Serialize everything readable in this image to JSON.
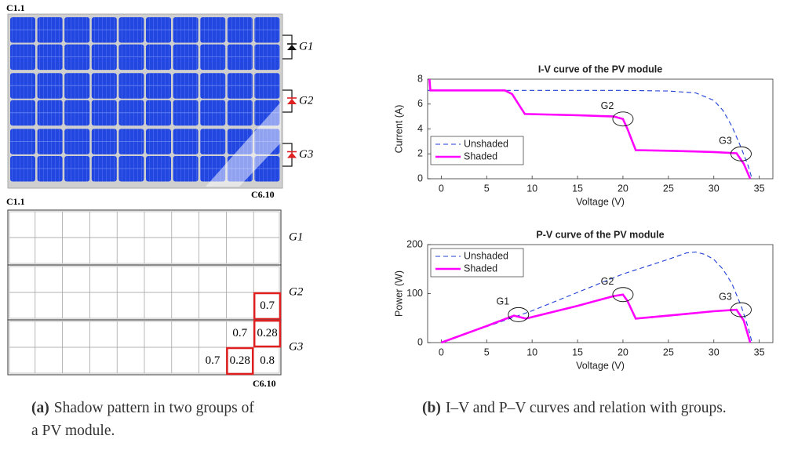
{
  "module": {
    "top_left": "C1.1",
    "bottom_right": "C6.10",
    "groups": [
      "G1",
      "G2",
      "G3"
    ]
  },
  "shadow_map": {
    "top_left": "C1.1",
    "bottom_right": "C6.10",
    "groups": [
      {
        "label": "G1",
        "rows": [
          [
            null,
            null,
            null,
            null,
            null,
            null,
            null,
            null,
            null,
            null
          ],
          [
            null,
            null,
            null,
            null,
            null,
            null,
            null,
            null,
            null,
            null
          ]
        ]
      },
      {
        "label": "G2",
        "rows": [
          [
            null,
            null,
            null,
            null,
            null,
            null,
            null,
            null,
            null,
            null
          ],
          [
            null,
            null,
            null,
            null,
            null,
            null,
            null,
            null,
            null,
            {
              "value": 0.7,
              "highlight": true
            }
          ]
        ]
      },
      {
        "label": "G3",
        "rows": [
          [
            null,
            null,
            null,
            null,
            null,
            null,
            null,
            null,
            0.7,
            {
              "value": 0.28,
              "highlight": true
            }
          ],
          [
            null,
            null,
            null,
            null,
            null,
            null,
            null,
            0.7,
            {
              "value": 0.28,
              "highlight": true
            },
            0.8
          ]
        ]
      }
    ]
  },
  "captions": [
    {
      "label": "(a)",
      "text": "Shadow pattern in two groups of a PV module."
    },
    {
      "label": "(b)",
      "text": "I–V and P–V curves and relation with groups."
    }
  ],
  "chart_data": [
    {
      "type": "line",
      "title": "I-V curve of the PV module",
      "x_label": "Voltage (V)",
      "y_label": "Current (A)",
      "xlim": [
        -1.5,
        36.5
      ],
      "xticks": [
        0,
        5,
        10,
        15,
        20,
        25,
        30,
        35
      ],
      "ylim": [
        0,
        8
      ],
      "yticks": [
        0,
        2,
        4,
        6,
        8
      ],
      "legend": "lower left",
      "series": [
        {
          "name": "Unshaded",
          "color": "#1f3fd6",
          "line_style": "dashed",
          "x": [
            -1.5,
            8,
            20,
            25,
            28,
            30,
            31,
            32,
            33,
            33.8,
            34.2
          ],
          "values": [
            7.1,
            7.1,
            7.1,
            7.05,
            6.9,
            6.3,
            5.5,
            4.2,
            2.5,
            1,
            0
          ]
        },
        {
          "name": "Shaded",
          "color": "#ff00ff",
          "line_style": "solid",
          "x": [
            -1.3,
            -1.2,
            7,
            7.8,
            8.5,
            9.2,
            15,
            19,
            20,
            20.5,
            21.4,
            25,
            30,
            32.5,
            33.3,
            34
          ],
          "values": [
            8,
            7.1,
            7.1,
            6.8,
            6,
            5.2,
            5.1,
            5,
            4.8,
            4,
            2.3,
            2.25,
            2.15,
            2.05,
            1.2,
            0
          ]
        }
      ],
      "annotations": [
        {
          "text": "G2",
          "x": 20,
          "y": 4.8
        },
        {
          "text": "G3",
          "x": 33,
          "y": 2
        }
      ]
    },
    {
      "type": "line",
      "title": "P-V curve of the PV module",
      "x_label": "Voltage (V)",
      "y_label": "Power (W)",
      "xlim": [
        -1.5,
        36.5
      ],
      "xticks": [
        0,
        5,
        10,
        15,
        20,
        25,
        30,
        35
      ],
      "ylim": [
        0,
        200
      ],
      "yticks": [
        0,
        100,
        200
      ],
      "legend": "upper left",
      "series": [
        {
          "name": "Unshaded",
          "color": "#1f3fd6",
          "line_style": "dashed",
          "x": [
            0,
            10,
            20,
            25,
            27,
            28,
            29,
            30,
            31,
            32,
            33,
            33.8,
            34.2
          ],
          "values": [
            0,
            65,
            140,
            170,
            183,
            185,
            180,
            170,
            150,
            120,
            75,
            30,
            0
          ]
        },
        {
          "name": "Shaded",
          "color": "#ff00ff",
          "line_style": "solid",
          "x": [
            0,
            5,
            8,
            9.3,
            15,
            19,
            20,
            20.5,
            21.4,
            25,
            30,
            32.5,
            33.3,
            34
          ],
          "values": [
            0,
            34,
            55,
            49,
            75,
            95,
            98,
            85,
            49,
            55,
            64,
            67,
            45,
            0
          ]
        }
      ],
      "annotations": [
        {
          "text": "G1",
          "x": 8.5,
          "y": 57
        },
        {
          "text": "G2",
          "x": 20,
          "y": 98
        },
        {
          "text": "G3",
          "x": 33,
          "y": 67
        }
      ]
    }
  ]
}
